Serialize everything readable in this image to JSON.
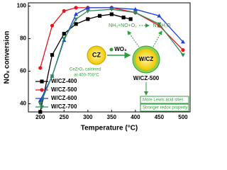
{
  "chart_data": {
    "type": "line",
    "x_label": "Temperature (°C)",
    "y_label": "NOₓ conversion",
    "xlim": [
      175,
      515
    ],
    "ylim": [
      35,
      102
    ],
    "xticks": [
      200,
      250,
      300,
      350,
      400,
      450,
      500
    ],
    "yticks": [
      40,
      60,
      80,
      100
    ],
    "legend": "lower left",
    "series": [
      {
        "name": "W/CZ-400",
        "color": "#000000",
        "marker": "square",
        "x": [
          200,
          225,
          250,
          275,
          300,
          325,
          350,
          375,
          390
        ],
        "values": [
          35,
          70,
          83,
          89,
          92,
          94,
          95,
          93,
          92
        ]
      },
      {
        "name": "W/CZ-500",
        "color": "#e8141b",
        "marker": "circle",
        "x": [
          200,
          225,
          250,
          275,
          300,
          350,
          400,
          450,
          500
        ],
        "values": [
          62,
          88,
          97,
          99,
          99,
          99,
          96,
          88,
          73
        ]
      },
      {
        "name": "W/CZ-600",
        "color": "#1b3fd8",
        "marker": "triangle-up",
        "x": [
          200,
          225,
          250,
          275,
          300,
          350,
          400,
          450,
          500
        ],
        "values": [
          42,
          57,
          79,
          95,
          99,
          99,
          98,
          94,
          78
        ]
      },
      {
        "name": "W/CZ-700",
        "color": "#2e8b57",
        "marker": "triangle-down",
        "x": [
          200,
          225,
          250,
          275,
          300,
          350,
          400,
          450,
          500
        ],
        "values": [
          40,
          57,
          80,
          92,
          97,
          98,
          96,
          89,
          70
        ]
      }
    ],
    "annotations": [
      "NH₃+NO+O₂",
      "N₂+H₂O",
      "CZ",
      "CeZrO₂ calcined",
      "at 400-700°C",
      "WO₃",
      "W/CZ",
      "W/CZ-500",
      "More Lewis acid sites",
      "Stronger redox property"
    ]
  }
}
